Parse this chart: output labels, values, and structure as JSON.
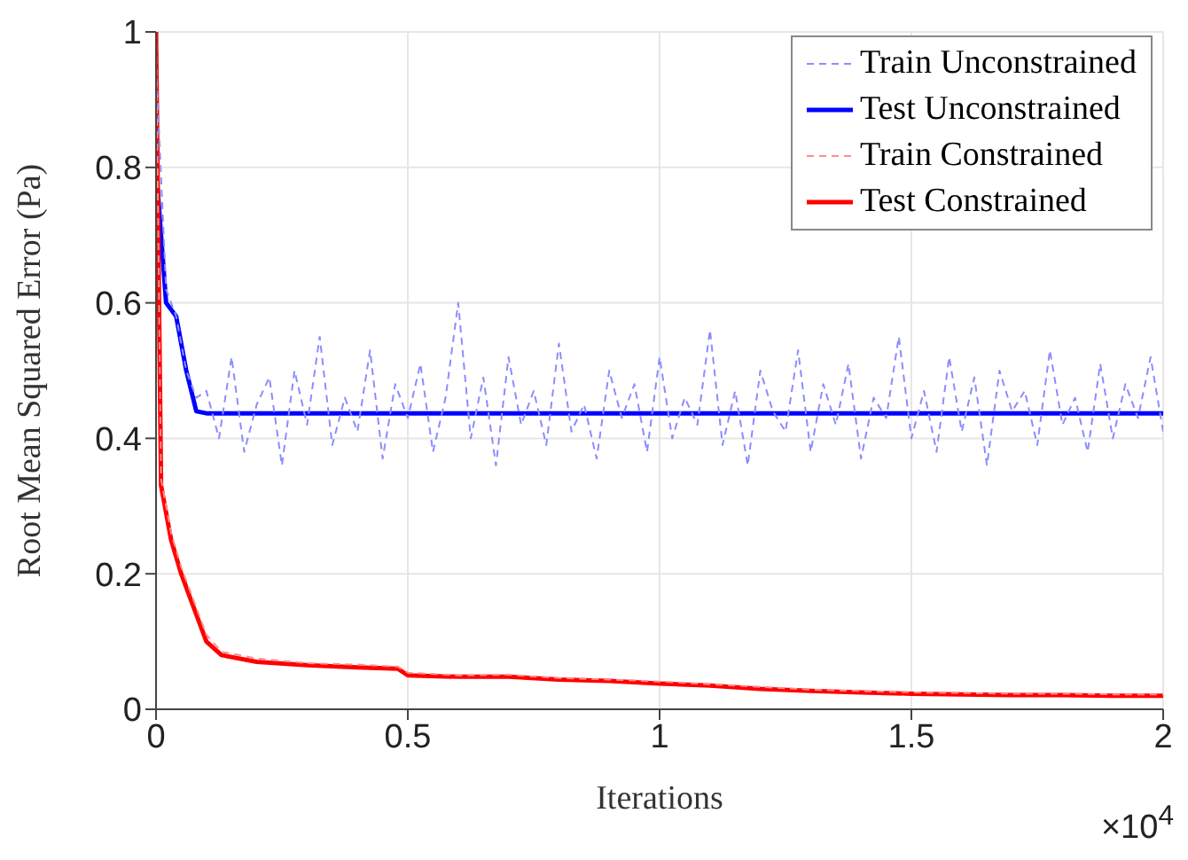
{
  "chart_data": {
    "type": "line",
    "xlabel": "Iterations",
    "ylabel": "Root Mean Squared Error (Pa)",
    "annotations": [
      "×10$^{4}$"
    ],
    "xlim": [
      0,
      2
    ],
    "xticks": [
      0,
      0.5,
      1,
      1.5,
      2
    ],
    "ylim": [
      0,
      1
    ],
    "yticks": [
      0,
      0.2,
      0.4,
      0.6,
      0.8,
      1
    ],
    "grid": true,
    "legend": "top right",
    "marker": "none",
    "series": [
      {
        "name": "Train Unconstrained",
        "color": "#8c8cff",
        "line_style": "dashed",
        "x": [
          0,
          0.02,
          0.04,
          0.06,
          0.08,
          0.1,
          0.125,
          0.15,
          0.175,
          0.2,
          0.225,
          0.25,
          0.275,
          0.3,
          0.325,
          0.35,
          0.375,
          0.4,
          0.425,
          0.45,
          0.475,
          0.5,
          0.525,
          0.55,
          0.575,
          0.6,
          0.625,
          0.65,
          0.675,
          0.7,
          0.725,
          0.75,
          0.775,
          0.8,
          0.825,
          0.85,
          0.875,
          0.9,
          0.925,
          0.95,
          0.975,
          1,
          1.025,
          1.05,
          1.075,
          1.1,
          1.125,
          1.15,
          1.175,
          1.2,
          1.225,
          1.25,
          1.275,
          1.3,
          1.325,
          1.35,
          1.375,
          1.4,
          1.425,
          1.45,
          1.475,
          1.5,
          1.525,
          1.55,
          1.575,
          1.6,
          1.625,
          1.65,
          1.675,
          1.7,
          1.725,
          1.75,
          1.775,
          1.8,
          1.825,
          1.85,
          1.875,
          1.9,
          1.925,
          1.95,
          1.975,
          2
        ],
        "values": [
          0.95,
          0.62,
          0.58,
          0.5,
          0.46,
          0.47,
          0.4,
          0.52,
          0.38,
          0.45,
          0.49,
          0.36,
          0.5,
          0.42,
          0.55,
          0.39,
          0.46,
          0.41,
          0.53,
          0.37,
          0.48,
          0.43,
          0.51,
          0.38,
          0.46,
          0.6,
          0.4,
          0.49,
          0.36,
          0.52,
          0.42,
          0.47,
          0.39,
          0.54,
          0.41,
          0.45,
          0.37,
          0.5,
          0.43,
          0.48,
          0.38,
          0.52,
          0.4,
          0.46,
          0.42,
          0.56,
          0.39,
          0.47,
          0.36,
          0.5,
          0.44,
          0.41,
          0.53,
          0.38,
          0.48,
          0.42,
          0.51,
          0.37,
          0.46,
          0.43,
          0.55,
          0.4,
          0.47,
          0.38,
          0.52,
          0.41,
          0.49,
          0.36,
          0.5,
          0.44,
          0.47,
          0.39,
          0.53,
          0.42,
          0.46,
          0.38,
          0.51,
          0.4,
          0.48,
          0.43,
          0.52,
          0.41
        ]
      },
      {
        "name": "Test Unconstrained",
        "color": "#0000ff",
        "line_style": "solid",
        "x": [
          0,
          0.005,
          0.02,
          0.04,
          0.06,
          0.08,
          0.1,
          0.5,
          1,
          1.5,
          2
        ],
        "values": [
          0.8,
          0.75,
          0.6,
          0.58,
          0.5,
          0.44,
          0.437,
          0.437,
          0.437,
          0.437,
          0.437
        ]
      },
      {
        "name": "Train Constrained",
        "color": "#ff8c8c",
        "line_style": "dashed",
        "x": [
          0,
          0.01,
          0.03,
          0.05,
          0.08,
          0.1,
          0.13,
          0.2,
          0.3,
          0.4,
          0.48,
          0.5,
          0.6,
          0.7,
          0.8,
          0.9,
          1,
          1.1,
          1.2,
          1.3,
          1.4,
          1.5,
          1.6,
          1.7,
          1.8,
          1.9,
          2
        ],
        "values": [
          1,
          0.34,
          0.26,
          0.21,
          0.15,
          0.11,
          0.085,
          0.075,
          0.068,
          0.066,
          0.063,
          0.054,
          0.05,
          0.051,
          0.046,
          0.044,
          0.041,
          0.037,
          0.033,
          0.029,
          0.027,
          0.025,
          0.024,
          0.023,
          0.023,
          0.022,
          0.022
        ]
      },
      {
        "name": "Test Constrained",
        "color": "#ff0000",
        "line_style": "solid",
        "x": [
          0,
          0.01,
          0.03,
          0.05,
          0.08,
          0.1,
          0.13,
          0.2,
          0.3,
          0.4,
          0.48,
          0.5,
          0.6,
          0.7,
          0.8,
          0.9,
          1,
          1.1,
          1.2,
          1.3,
          1.4,
          1.5,
          1.6,
          1.7,
          1.8,
          1.9,
          2
        ],
        "values": [
          1,
          0.33,
          0.25,
          0.2,
          0.14,
          0.1,
          0.08,
          0.07,
          0.065,
          0.062,
          0.06,
          0.05,
          0.048,
          0.048,
          0.044,
          0.042,
          0.038,
          0.035,
          0.03,
          0.027,
          0.025,
          0.023,
          0.022,
          0.021,
          0.021,
          0.02,
          0.02
        ]
      }
    ]
  }
}
